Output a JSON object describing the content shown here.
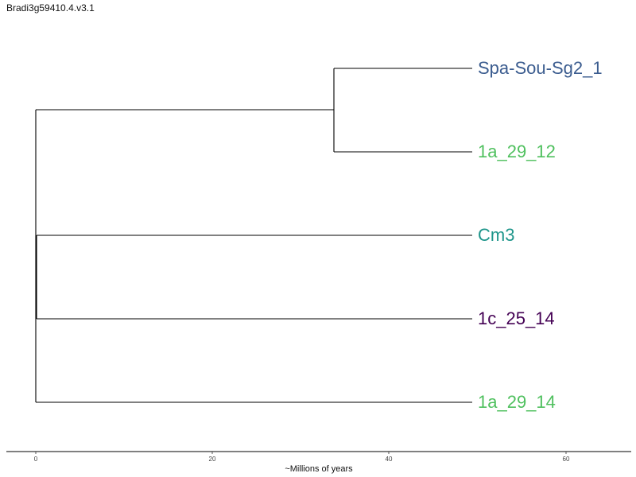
{
  "title": "Bradi3g59410.4.v3.1",
  "axis": {
    "label": "~Millions of years",
    "ticks": [
      "0",
      "20",
      "40",
      "60"
    ]
  },
  "tree": {
    "leaves": [
      {
        "label": "Spa-Sou-Sg2_1",
        "color": "#3b5c8f"
      },
      {
        "label": "1a_29_12",
        "color": "#4fc05e"
      },
      {
        "label": "Cm3",
        "color": "#1f968b"
      },
      {
        "label": "1c_25_14",
        "color": "#440154"
      },
      {
        "label": "1a_29_14",
        "color": "#4fc05e"
      }
    ],
    "line_color": "#000000"
  }
}
